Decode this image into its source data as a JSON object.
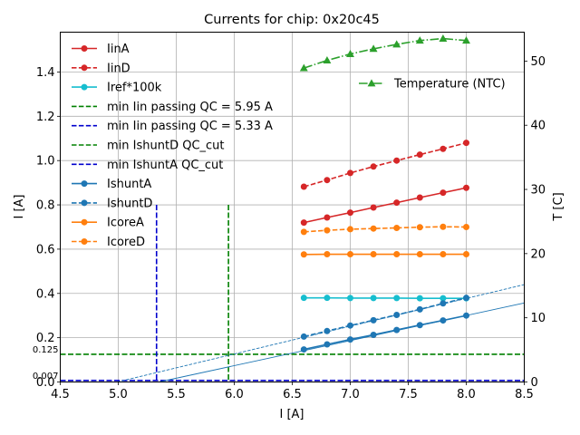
{
  "chart_data": {
    "type": "line",
    "title": "Currents for chip: 0x20c45",
    "xlabel": "I [A]",
    "ylabel": "I [A]",
    "y2label": "T [C]",
    "xlim": [
      4.5,
      8.5
    ],
    "ylim": [
      0.0,
      1.58
    ],
    "y2lim": [
      0.0,
      54.5
    ],
    "grid": true,
    "x_ticks": [
      4.5,
      5.0,
      5.5,
      6.0,
      6.5,
      7.0,
      7.5,
      8.0,
      8.5
    ],
    "x_tick_labels": [
      "4.5",
      "5.0",
      "5.5",
      "6.0",
      "6.5",
      "7.0",
      "7.5",
      "8.0",
      "8.5"
    ],
    "y_ticks": [
      0.0,
      0.2,
      0.4,
      0.6,
      0.8,
      1.0,
      1.2,
      1.4
    ],
    "y_tick_labels": [
      "0.0",
      "0.2",
      "0.4",
      "0.6",
      "0.8",
      "1.0",
      "1.2",
      "1.4"
    ],
    "y2_ticks": [
      0,
      10,
      20,
      30,
      40,
      50
    ],
    "y2_tick_labels": [
      "0",
      "10",
      "20",
      "30",
      "40",
      "50"
    ],
    "x": [
      6.6,
      6.8,
      7.0,
      7.2,
      7.4,
      7.6,
      7.8,
      8.0
    ],
    "series": [
      {
        "name": "IinA",
        "color": "#d62728",
        "style": "solid",
        "marker": "o",
        "axis": "left",
        "values": [
          0.72,
          0.743,
          0.765,
          0.788,
          0.81,
          0.833,
          0.855,
          0.877
        ]
      },
      {
        "name": "IinD",
        "color": "#d62728",
        "style": "dashed",
        "marker": "o",
        "axis": "left",
        "values": [
          0.882,
          0.912,
          0.944,
          0.973,
          1.0,
          1.027,
          1.053,
          1.08
        ]
      },
      {
        "name": "Iref*100k",
        "color": "#17becf",
        "style": "solid",
        "marker": "o",
        "axis": "left",
        "values": [
          0.38,
          0.38,
          0.379,
          0.379,
          0.379,
          0.378,
          0.378,
          0.378
        ]
      },
      {
        "name": "IshuntA",
        "color": "#1f77b4",
        "style": "solid",
        "marker": "o",
        "axis": "left",
        "values": [
          0.147,
          0.17,
          0.192,
          0.213,
          0.235,
          0.257,
          0.278,
          0.3
        ]
      },
      {
        "name": "IshuntD",
        "color": "#1f77b4",
        "style": "dashed",
        "marker": "o",
        "axis": "left",
        "values": [
          0.205,
          0.23,
          0.255,
          0.279,
          0.303,
          0.328,
          0.355,
          0.38
        ]
      },
      {
        "name": "IcoreA",
        "color": "#ff7f0e",
        "style": "solid",
        "marker": "o",
        "axis": "left",
        "values": [
          0.576,
          0.577,
          0.577,
          0.577,
          0.577,
          0.577,
          0.577,
          0.577
        ]
      },
      {
        "name": "IcoreD",
        "color": "#ff7f0e",
        "style": "dashed",
        "marker": "o",
        "axis": "left",
        "values": [
          0.678,
          0.685,
          0.69,
          0.693,
          0.696,
          0.699,
          0.701,
          0.7
        ]
      },
      {
        "name": "Temperature (NTC)",
        "color": "#2ca02c",
        "style": "dashdot",
        "marker": "^",
        "axis": "right",
        "values": [
          48.9,
          50.1,
          51.1,
          51.9,
          52.6,
          53.2,
          53.5,
          53.2
        ]
      }
    ],
    "fit_lines": [
      {
        "name": "IshuntA fit",
        "color": "#1f77b4",
        "style": "solid",
        "x": [
          5.35,
          8.5
        ],
        "y": [
          0.0,
          0.357
        ]
      },
      {
        "name": "IshuntD fit",
        "color": "#1f77b4",
        "style": "dashed",
        "x": [
          4.99,
          8.5
        ],
        "y": [
          0.0,
          0.44
        ]
      }
    ],
    "vlines": [
      {
        "name": "min Iin passing QC = 5.95 A",
        "x": 5.95,
        "y_max": 0.8,
        "color": "#008000"
      },
      {
        "name": "min Iin passing QC = 5.33 A",
        "x": 5.33,
        "y_max": 0.8,
        "color": "#0000cd"
      }
    ],
    "hlines": [
      {
        "name": "min IshuntD QC_cut",
        "y": 0.125,
        "label": "0.125",
        "color": "#008000"
      },
      {
        "name": "min IshuntA QC_cut",
        "y": 0.007,
        "label": "0.007",
        "color": "#0000cd"
      }
    ],
    "legend_left": [
      {
        "label": "IinA",
        "color": "#d62728",
        "style": "solid",
        "marker": "o"
      },
      {
        "label": "IinD",
        "color": "#d62728",
        "style": "dashed",
        "marker": "o"
      },
      {
        "label": "Iref*100k",
        "color": "#17becf",
        "style": "solid",
        "marker": "o"
      },
      {
        "label": "min Iin passing QC = 5.95 A",
        "color": "#008000",
        "style": "dashed",
        "marker": "none"
      },
      {
        "label": "min Iin passing QC = 5.33 A",
        "color": "#0000cd",
        "style": "dashed",
        "marker": "none"
      },
      {
        "label": "min IshuntD QC_cut",
        "color": "#008000",
        "style": "dashed",
        "marker": "none"
      },
      {
        "label": "min IshuntA QC_cut",
        "color": "#0000cd",
        "style": "dashed",
        "marker": "none"
      },
      {
        "label": "IshuntA",
        "color": "#1f77b4",
        "style": "solid",
        "marker": "o"
      },
      {
        "label": "IshuntD",
        "color": "#1f77b4",
        "style": "dashed",
        "marker": "o"
      },
      {
        "label": "IcoreA",
        "color": "#ff7f0e",
        "style": "solid",
        "marker": "o"
      },
      {
        "label": "IcoreD",
        "color": "#ff7f0e",
        "style": "dashed",
        "marker": "o"
      }
    ],
    "legend_right": [
      {
        "label": "Temperature (NTC)",
        "color": "#2ca02c",
        "style": "dashdot",
        "marker": "^"
      }
    ],
    "legend_left_placement": "top-left",
    "legend_right_placement": "top-right"
  }
}
